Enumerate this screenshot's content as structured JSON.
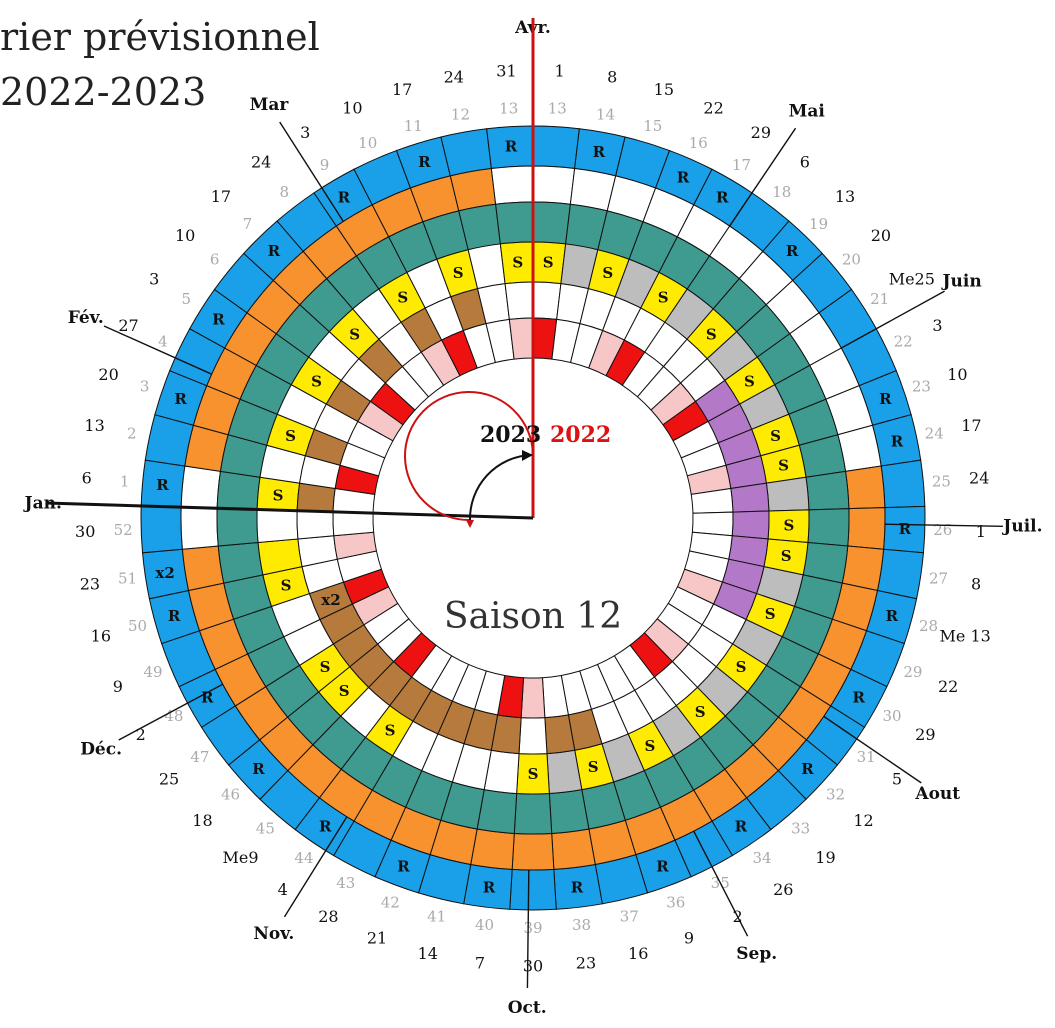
{
  "title": {
    "line1": "rier prévisionnel",
    "line2": "2022-2023"
  },
  "center": {
    "season": "Saison 12",
    "year_black": "2023",
    "year_red": "2022"
  },
  "colors": {
    "blue": "#1aa0e8",
    "orange": "#f7922e",
    "teal": "#3f9a8f",
    "yellow": "#ffeb00",
    "grey": "#bdbdbd",
    "brown": "#b57a3c",
    "red": "#ee1111",
    "pink": "#f7c6c6",
    "purple": "#b478c8",
    "white": "#ffffff",
    "dark_red_line": "#cc1111"
  },
  "weeks": [
    13,
    14,
    15,
    16,
    17,
    18,
    19,
    20,
    21,
    22,
    23,
    24,
    25,
    26,
    27,
    28,
    29,
    30,
    31,
    32,
    33,
    34,
    35,
    36,
    37,
    38,
    39,
    40,
    41,
    42,
    43,
    44,
    45,
    46,
    47,
    48,
    49,
    50,
    51,
    52,
    1,
    2,
    3,
    4,
    5,
    6,
    7,
    8,
    9,
    10,
    11,
    12,
    13
  ],
  "day_labels": [
    "1",
    "8",
    "15",
    "22",
    "29",
    "6",
    "13",
    "20",
    "Me25",
    "3",
    "10",
    "17",
    "24",
    "1",
    "8",
    "Me 13",
    "22",
    "29",
    "5",
    "12",
    "19",
    "26",
    "2",
    "9",
    "16",
    "23",
    "30",
    "7",
    "14",
    "21",
    "28",
    "4",
    "Me9",
    "18",
    "25",
    "2",
    "9",
    "16",
    "23",
    "30",
    "6",
    "13",
    "20",
    "27",
    "3",
    "10",
    "17",
    "24",
    "3",
    "10",
    "17",
    "24",
    "31"
  ],
  "months": [
    {
      "label": "Avr.",
      "week": 0
    },
    {
      "label": "Mai",
      "week": 5
    },
    {
      "label": "Juin",
      "week": 9
    },
    {
      "label": "Juil.",
      "week": 13.4
    },
    {
      "label": "Aout",
      "week": 18.3
    },
    {
      "label": "Sep.",
      "week": 22.5
    },
    {
      "label": "Oct.",
      "week": 26.6
    },
    {
      "label": "Nov.",
      "week": 31.2
    },
    {
      "label": "Déc.",
      "week": 35.6
    },
    {
      "label": "Jan.",
      "week": 40
    },
    {
      "label": "Fév.",
      "week": 43.3
    },
    {
      "label": "Mar",
      "week": 48.2
    }
  ],
  "rings": {
    "ring1": [
      "blank",
      "R",
      "blank",
      "R",
      "R",
      "blank",
      "R",
      "blank",
      "blank",
      "blank",
      "R",
      "R",
      "blank",
      "R",
      "blank",
      "R",
      "blank",
      "R",
      "blank",
      "R",
      "blank",
      "R",
      "blank",
      "R",
      "blank",
      "R",
      "blank",
      "R",
      "blank",
      "R",
      "blank",
      "R",
      "blank",
      "R",
      "blank",
      "R",
      "blank",
      "R",
      "x2",
      "blank",
      "R",
      "blank",
      "R",
      "blank",
      "R",
      "blank",
      "R",
      "blank",
      "R",
      "blank",
      "R",
      "blank",
      "R"
    ],
    "ring2": [
      "w",
      "w",
      "w",
      "w",
      "w",
      "w",
      "w",
      "w",
      "w",
      "w",
      "w",
      "w",
      "o",
      "o",
      "o",
      "o",
      "o",
      "o",
      "o",
      "o",
      "o",
      "o",
      "o",
      "o",
      "o",
      "o",
      "o",
      "o",
      "o",
      "o",
      "o",
      "o",
      "o",
      "o",
      "o",
      "o",
      "o",
      "o",
      "o",
      "w",
      "w",
      "o",
      "o",
      "o",
      "o",
      "o",
      "o",
      "o",
      "o",
      "o",
      "o",
      "o",
      "w"
    ],
    "ring3": [
      "t",
      "t",
      "t",
      "t",
      "t",
      "t",
      "t",
      "t",
      "t",
      "t",
      "t",
      "t",
      "t",
      "t",
      "t",
      "t",
      "t",
      "t",
      "t",
      "t",
      "t",
      "t",
      "t",
      "t",
      "t",
      "t",
      "t",
      "t",
      "t",
      "t",
      "t",
      "t",
      "t",
      "t",
      "t",
      "t",
      "t",
      "t",
      "t",
      "t",
      "t",
      "t",
      "t",
      "t",
      "t",
      "t",
      "t",
      "t",
      "t",
      "t",
      "t",
      "t",
      "t"
    ],
    "ring4": [
      "S",
      "g",
      "S",
      "g",
      "S",
      "g",
      "S",
      "g",
      "S",
      "g",
      "S",
      "S",
      "g",
      "S",
      "S",
      "g",
      "S",
      "g",
      "S",
      "g",
      "S",
      "g",
      "S",
      "g",
      "S",
      "g",
      "S",
      "w",
      "w",
      "w",
      "w",
      "S",
      "w",
      "S",
      "S",
      "w",
      "w",
      "S",
      "y",
      "w",
      "S",
      "w",
      "S",
      "w",
      "S",
      "w",
      "S",
      "w",
      "S",
      "w",
      "S",
      "w",
      "S"
    ],
    "ring5": [
      "w",
      "w",
      "w",
      "w",
      "w",
      "w",
      "w",
      "w",
      "p",
      "p",
      "p",
      "p",
      "p",
      "p",
      "p",
      "p",
      "p",
      "w",
      "w",
      "w",
      "w",
      "w",
      "w",
      "w",
      "b",
      "b",
      "w",
      "b",
      "b",
      "b",
      "b",
      "b",
      "b",
      "b",
      "b",
      "b",
      "x2",
      "w",
      "w",
      "w",
      "b",
      "w",
      "b",
      "w",
      "b",
      "w",
      "b",
      "w",
      "b",
      "w",
      "b",
      "w",
      "w"
    ],
    "ring6": [
      "r",
      "w",
      "w",
      "k",
      "r",
      "w",
      "w",
      "k",
      "r",
      "w",
      "w",
      "k",
      "w",
      "w",
      "w",
      "w",
      "k",
      "w",
      "w",
      "k",
      "r",
      "w",
      "w",
      "w",
      "w",
      "w",
      "k",
      "r",
      "w",
      "w",
      "w",
      "w",
      "r",
      "w",
      "w",
      "k",
      "r",
      "w",
      "k",
      "w",
      "w",
      "r",
      "w",
      "w",
      "k",
      "r",
      "w",
      "w",
      "k",
      "r",
      "w",
      "w",
      "k"
    ]
  },
  "ring4_labels_note": "S=yellow with S, g=grey, w=white, y=yellow blank",
  "ring5_labels_note": "p=purple, b=brown, w=white",
  "ring6_labels_note": "r=red, k=pink, w=white"
}
